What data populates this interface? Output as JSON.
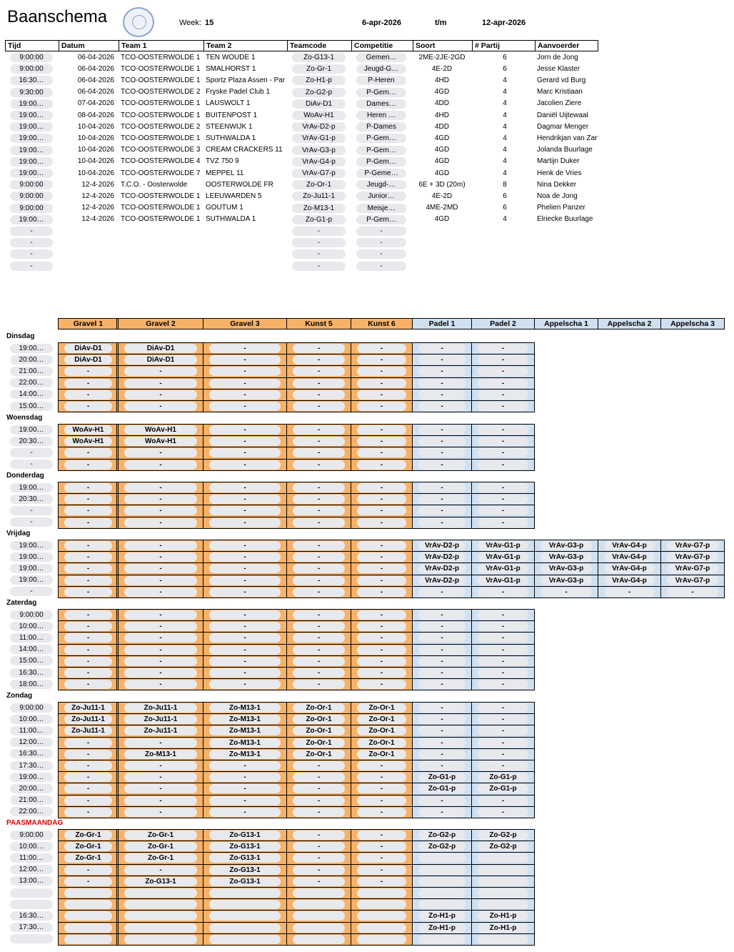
{
  "header": {
    "title": "Baanschema",
    "logo_text": "TENNIS & PADEL CLUB OOSTERWOLDE",
    "week_label": "Week:",
    "week": "15",
    "date_from": "6-apr-2026",
    "separator": "t/m",
    "date_to": "12-apr-2026"
  },
  "matches": {
    "columns": [
      "Tijd",
      "Datum",
      "Team 1",
      "Team 2",
      "Teamcode",
      "Competitie",
      "Soort",
      "# Partij",
      "Aanvoerder"
    ],
    "rows": [
      [
        "9:00:00",
        "06-04-2026",
        "TCO-OOSTERWOLDE 1",
        "TEN WOUDE 1",
        "Zo-G13-1",
        "Gemen…",
        "2ME-2JE-2GD",
        "6",
        "Jorn de Jong"
      ],
      [
        "9:00:00",
        "06-04-2026",
        "TCO-OOSTERWOLDE 1",
        "SMALHORST 1",
        "Zo-Gr-1",
        "Jeugd-G…",
        "4E-2D",
        "6",
        "Jesse Klaster"
      ],
      [
        "16:30…",
        "06-04-2026",
        "TCO-OOSTERWOLDE 1",
        "Sportz Plaza Assen - Par",
        "Zo-H1-p",
        "P-Heren",
        "4HD",
        "4",
        "Gerard vd Burg"
      ],
      [
        "9:30:00",
        "06-04-2026",
        "TCO-OOSTERWOLDE 2",
        "Fryske Padel Club 1",
        "Zo-G2-p",
        "P-Gem…",
        "4GD",
        "4",
        "Marc Kristiaan"
      ],
      [
        "19:00…",
        "07-04-2026",
        "TCO-OOSTERWOLDE 1",
        "LAUSWOLT 1",
        "DiAv-D1",
        "Dames…",
        "4DD",
        "4",
        "Jacolien Ziere"
      ],
      [
        "19:00…",
        "08-04-2026",
        "TCO-OOSTERWOLDE 1",
        "BUITENPOST 1",
        "WoAv-H1",
        "Heren …",
        "4HD",
        "4",
        "Daniël Uijtewaal"
      ],
      [
        "19:00…",
        "10-04-2026",
        "TCO-OOSTERWOLDE 2",
        "STEENWIJK 1",
        "VrAv-D2-p",
        "P-Dames",
        "4DD",
        "4",
        "Dagmar Menger"
      ],
      [
        "19:00…",
        "10-04-2026",
        "TCO-OOSTERWOLDE 1",
        "SUTHWALDA 1",
        "VrAv-G1-p",
        "P-Gem…",
        "4GD",
        "4",
        "Hendrikjan van Zanden"
      ],
      [
        "19:00…",
        "10-04-2026",
        "TCO-OOSTERWOLDE 3",
        "CREAM CRACKERS 11",
        "VrAv-G3-p",
        "P-Gem…",
        "4GD",
        "4",
        "Jolanda Buurlage"
      ],
      [
        "19:00…",
        "10-04-2026",
        "TCO-OOSTERWOLDE 4",
        "TVZ 750 9",
        "VrAv-G4-p",
        "P-Gem…",
        "4GD",
        "4",
        "Martijn Duker"
      ],
      [
        "19:00…",
        "10-04-2026",
        "TCO-OOSTERWOLDE 7",
        "MEPPEL 11",
        "VrAv-G7-p",
        "P-Geme…",
        "4GD",
        "4",
        "Henk de Vries"
      ],
      [
        "9:00:00",
        "12-4-2026",
        "T.C.O. - Oosterwolde",
        "OOSTERWOLDE FR",
        "Zo-Or-1",
        "Jeugd-…",
        "6E + 3D (20m)",
        "8",
        "Nina Dekker"
      ],
      [
        "9:00:00",
        "12-4-2026",
        "TCO-OOSTERWOLDE 1",
        "LEEUWARDEN 5",
        "Zo-Ju11-1",
        "Junior…",
        "4E-2D",
        "6",
        "Noa de Jong"
      ],
      [
        "9:00:00",
        "12-4-2026",
        "TCO-OOSTERWOLDE 1",
        "GOUTUM 1",
        "Zo-M13-1",
        "Meisje…",
        "4ME-2MD",
        "6",
        "Phelien Panzer"
      ],
      [
        "19:00…",
        "12-4-2026",
        "TCO-OOSTERWOLDE 1",
        "SUTHWALDA 1",
        "Zo-G1-p",
        "P-Gem…",
        "4GD",
        "4",
        "Elriecke Buurlage"
      ],
      [
        "-",
        "",
        "",
        "",
        "-",
        "-",
        "",
        "",
        ""
      ],
      [
        "-",
        "",
        "",
        "",
        "-",
        "-",
        "",
        "",
        ""
      ],
      [
        "-",
        "",
        "",
        "",
        "-",
        "-",
        "",
        "",
        ""
      ],
      [
        "-",
        "",
        "",
        "",
        "-",
        "-",
        "",
        "",
        ""
      ]
    ]
  },
  "courts": {
    "columns": [
      "Gravel 1",
      "Gravel 2",
      "Gravel 3",
      "Kunst 5",
      "Kunst 6",
      "Padel 1",
      "Padel 2",
      "Appelscha 1",
      "Appelscha 2",
      "Appelscha 3"
    ],
    "colors": {
      "gravel_kunst": "#f7b267",
      "padel": "#cfe0f1",
      "holiday": "#e00000"
    },
    "days": [
      {
        "name": "Dinsdag",
        "times": [
          "19:00…",
          "20:00…",
          "21:00…",
          "22:00…",
          "14:00…",
          "15:00…"
        ],
        "rows": [
          [
            "DiAv-D1",
            "DiAv-D1",
            "-",
            "-",
            "-",
            "-",
            "-"
          ],
          [
            "DiAv-D1",
            "DiAv-D1",
            "-",
            "-",
            "-",
            "-",
            "-"
          ],
          [
            "-",
            "-",
            "-",
            "-",
            "-",
            "-",
            "-"
          ],
          [
            "-",
            "-",
            "-",
            "-",
            "-",
            "-",
            "-"
          ],
          [
            "-",
            "-",
            "-",
            "-",
            "-",
            "-",
            "-"
          ],
          [
            "-",
            "-",
            "-",
            "-",
            "-",
            "-",
            "-"
          ]
        ]
      },
      {
        "name": "Woensdag",
        "times": [
          "19:00…",
          "20:30…",
          "-",
          "-"
        ],
        "rows": [
          [
            "WoAv-H1",
            "WoAv-H1",
            "-",
            "-",
            "-",
            "-",
            "-"
          ],
          [
            "WoAv-H1",
            "WoAv-H1",
            "-",
            "-",
            "-",
            "-",
            "-"
          ],
          [
            "-",
            "-",
            "-",
            "-",
            "-",
            "-",
            "-"
          ],
          [
            "-",
            "-",
            "-",
            "-",
            "-",
            "-",
            "-"
          ]
        ]
      },
      {
        "name": "Donderdag",
        "times": [
          "19:00…",
          "20:30…",
          "-",
          "-"
        ],
        "rows": [
          [
            "-",
            "-",
            "-",
            "-",
            "-",
            "-",
            "-"
          ],
          [
            "-",
            "-",
            "-",
            "-",
            "-",
            "-",
            "-"
          ],
          [
            "-",
            "-",
            "-",
            "-",
            "-",
            "-",
            "-"
          ],
          [
            "-",
            "-",
            "-",
            "-",
            "-",
            "-",
            "-"
          ]
        ]
      },
      {
        "name": "Vrijdag",
        "times": [
          "19:00…",
          "19:00…",
          "19:00…",
          "19:00…",
          "-"
        ],
        "rows": [
          [
            "-",
            "-",
            "-",
            "-",
            "-",
            "VrAv-D2-p",
            "VrAv-G1-p",
            "VrAv-G3-p",
            "VrAv-G4-p",
            "VrAv-G7-p"
          ],
          [
            "-",
            "-",
            "-",
            "-",
            "-",
            "VrAv-D2-p",
            "VrAv-G1-p",
            "VrAv-G3-p",
            "VrAv-G4-p",
            "VrAv-G7-p"
          ],
          [
            "-",
            "-",
            "-",
            "-",
            "-",
            "VrAv-D2-p",
            "VrAv-G1-p",
            "VrAv-G3-p",
            "VrAv-G4-p",
            "VrAv-G7-p"
          ],
          [
            "-",
            "-",
            "-",
            "-",
            "-",
            "VrAv-D2-p",
            "VrAv-G1-p",
            "VrAv-G3-p",
            "VrAv-G4-p",
            "VrAv-G7-p"
          ],
          [
            "-",
            "-",
            "-",
            "-",
            "-",
            "-",
            "-",
            "-",
            "-",
            "-"
          ]
        ]
      },
      {
        "name": "Zaterdag",
        "times": [
          "9:00:00",
          "10:00…",
          "11:00…",
          "14:00…",
          "15:00…",
          "16:30…",
          "18:00…"
        ],
        "rows": [
          [
            "-",
            "-",
            "-",
            "-",
            "-",
            "-",
            "-"
          ],
          [
            "-",
            "-",
            "-",
            "-",
            "-",
            "-",
            "-"
          ],
          [
            "-",
            "-",
            "-",
            "-",
            "-",
            "-",
            "-"
          ],
          [
            "-",
            "-",
            "-",
            "-",
            "-",
            "-",
            "-"
          ],
          [
            "-",
            "-",
            "-",
            "-",
            "-",
            "-",
            "-"
          ],
          [
            "-",
            "-",
            "-",
            "-",
            "-",
            "-",
            "-"
          ],
          [
            "-",
            "-",
            "-",
            "-",
            "-",
            "-",
            "-"
          ]
        ]
      },
      {
        "name": "Zondag",
        "times": [
          "9:00:00",
          "10:00…",
          "11:00…",
          "12:00…",
          "16:30…",
          "17:30…",
          "19:00…",
          "20:00…",
          "21:00…",
          "22:00…"
        ],
        "rows": [
          [
            "Zo-Ju11-1",
            "Zo-Ju11-1",
            "Zo-M13-1",
            "Zo-Or-1",
            "Zo-Or-1",
            "-",
            "-"
          ],
          [
            "Zo-Ju11-1",
            "Zo-Ju11-1",
            "Zo-M13-1",
            "Zo-Or-1",
            "Zo-Or-1",
            "-",
            "-"
          ],
          [
            "Zo-Ju11-1",
            "Zo-Ju11-1",
            "Zo-M13-1",
            "Zo-Or-1",
            "Zo-Or-1",
            "-",
            "-"
          ],
          [
            "-",
            "-",
            "Zo-M13-1",
            "Zo-Or-1",
            "Zo-Or-1",
            "-",
            "-"
          ],
          [
            "-",
            "Zo-M13-1",
            "Zo-M13-1",
            "Zo-Or-1",
            "Zo-Or-1",
            "-",
            "-"
          ],
          [
            "-",
            "-",
            "-",
            "-",
            "-",
            "-",
            "-"
          ],
          [
            "-",
            "-",
            "-",
            "-",
            "-",
            "Zo-G1-p",
            "Zo-G1-p"
          ],
          [
            "-",
            "-",
            "-",
            "-",
            "-",
            "Zo-G1-p",
            "Zo-G1-p"
          ],
          [
            "-",
            "-",
            "-",
            "-",
            "-",
            "-",
            "-"
          ],
          [
            "-",
            "-",
            "-",
            "-",
            "-",
            "-",
            "-"
          ]
        ]
      },
      {
        "name": "PAASMAANDAG",
        "holiday": true,
        "times": [
          "9:00:00",
          "10:00…",
          "11:00…",
          "12:00…",
          "13:00…",
          "",
          "",
          "16:30…",
          "17:30…",
          ""
        ],
        "rows": [
          [
            "Zo-Gr-1",
            "Zo-Gr-1",
            "Zo-G13-1",
            "-",
            "-",
            "Zo-G2-p",
            "Zo-G2-p"
          ],
          [
            "Zo-Gr-1",
            "Zo-Gr-1",
            "Zo-G13-1",
            "-",
            "-",
            "Zo-G2-p",
            "Zo-G2-p"
          ],
          [
            "Zo-Gr-1",
            "Zo-Gr-1",
            "Zo-G13-1",
            "-",
            "-",
            "",
            ""
          ],
          [
            "-",
            "-",
            "Zo-G13-1",
            "-",
            "-",
            "",
            ""
          ],
          [
            "-",
            "Zo-G13-1",
            "Zo-G13-1",
            "-",
            "-",
            "",
            ""
          ],
          [
            "",
            "",
            "",
            "",
            "",
            "",
            ""
          ],
          [
            "",
            "",
            "",
            "",
            "",
            "",
            ""
          ],
          [
            "",
            "",
            "",
            "",
            "",
            "Zo-H1-p",
            "Zo-H1-p"
          ],
          [
            "",
            "",
            "",
            "",
            "",
            "Zo-H1-p",
            "Zo-H1-p"
          ],
          [
            "",
            "",
            "",
            "",
            "",
            "",
            ""
          ]
        ]
      }
    ]
  }
}
